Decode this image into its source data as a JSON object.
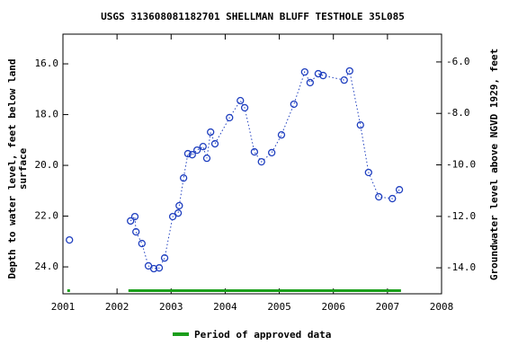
{
  "chart_data": {
    "type": "scatter",
    "title": "USGS 313608081182701 SHELLMAN BLUFF TESTHOLE 35L085",
    "y_label": [
      "Depth to water level, feet below land",
      "surface"
    ],
    "y2_label": "Groundwater level above NGVD 1929, feet",
    "x": [
      2001.12,
      2002.25,
      2002.33,
      2002.35,
      2002.46,
      2002.58,
      2002.68,
      2002.78,
      2002.88,
      2003.03,
      2003.13,
      2003.15,
      2003.23,
      2003.31,
      2003.39,
      2003.48,
      2003.59,
      2003.66,
      2003.73,
      2003.81,
      2004.08,
      2004.28,
      2004.36,
      2004.54,
      2004.67,
      2004.86,
      2005.04,
      2005.27,
      2005.47,
      2005.57,
      2005.72,
      2005.81,
      2006.2,
      2006.3,
      2006.5,
      2006.65,
      2006.84,
      2007.09,
      2007.22
    ],
    "series": [
      {
        "color": "#1f3fbf",
        "values": [
          22.94,
          22.19,
          22.02,
          22.62,
          23.08,
          23.96,
          24.07,
          24.04,
          23.65,
          22.02,
          21.88,
          21.59,
          20.5,
          19.54,
          19.58,
          19.4,
          19.26,
          19.72,
          18.69,
          19.15,
          18.12,
          17.45,
          17.73,
          19.47,
          19.86,
          19.5,
          18.8,
          17.59,
          16.32,
          16.74,
          16.39,
          16.46,
          16.64,
          16.28,
          18.41,
          20.28,
          21.24,
          21.31,
          20.96
        ]
      }
    ],
    "approved_periods": {
      "name": "Period of approved data",
      "color": "#1a9e1a",
      "ranges": [
        [
          2001.08,
          2001.13
        ],
        [
          2002.21,
          2007.25
        ]
      ]
    },
    "xlim": [
      2001,
      2008
    ],
    "xticks": [
      2001,
      2002,
      2003,
      2004,
      2005,
      2006,
      2007,
      2008
    ],
    "ylim": [
      14.83,
      25.06
    ],
    "y_inverted": true,
    "yticks": [
      {
        "value": 16,
        "label": "16.0"
      },
      {
        "value": 18,
        "label": "18.0"
      },
      {
        "value": 20,
        "label": "20.0"
      },
      {
        "value": 22,
        "label": "22.0"
      },
      {
        "value": 24,
        "label": "24.0"
      }
    ],
    "y2lim": [
      -15.01,
      -4.92
    ],
    "y2ticks": [
      {
        "value": -6,
        "label": "-6.0"
      },
      {
        "value": -8,
        "label": "-8.0"
      },
      {
        "value": -10,
        "label": "-10.0"
      },
      {
        "value": -12,
        "label": "-12.0"
      },
      {
        "value": -14,
        "label": "-14.0"
      }
    ]
  }
}
